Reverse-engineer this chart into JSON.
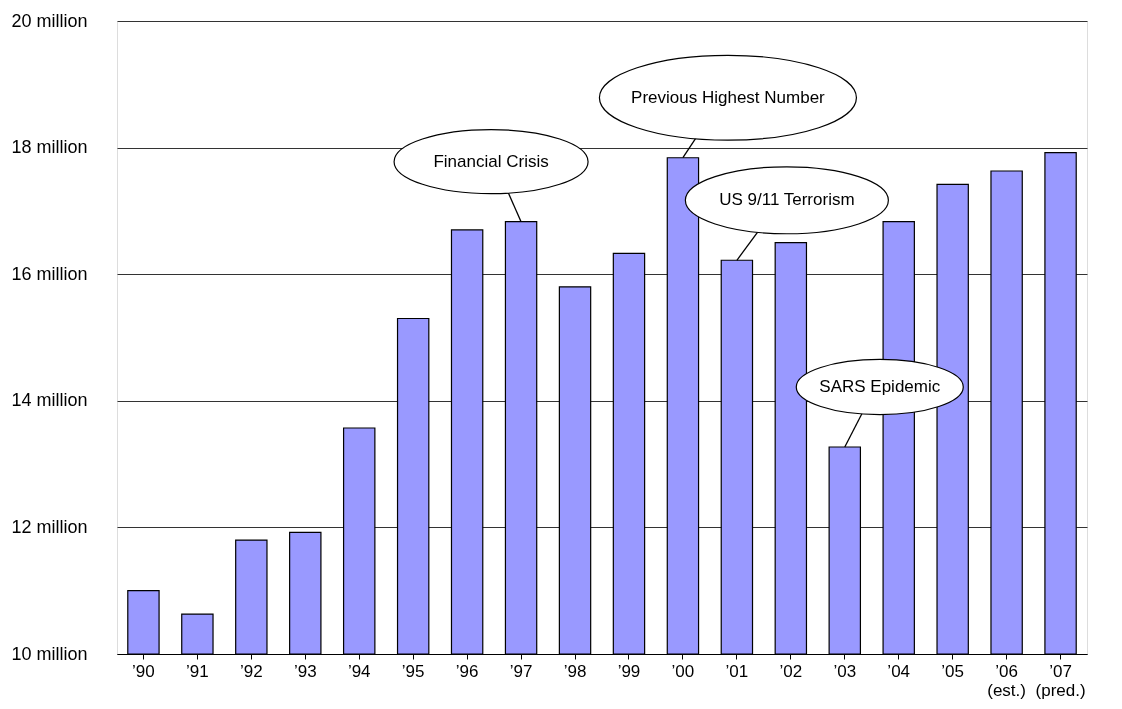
{
  "chart_data": {
    "type": "bar",
    "categories": [
      "’90",
      "’91",
      "’92",
      "’93",
      "’94",
      "’95",
      "’96",
      "’97",
      "’98",
      "’99",
      "’00",
      "’01",
      "’02",
      "’03",
      "’04",
      "’05",
      "’06\n(est.)",
      "’07\n(pred.)"
    ],
    "values": [
      11.0,
      10.63,
      11.8,
      11.92,
      13.57,
      15.3,
      16.7,
      16.83,
      15.8,
      16.33,
      17.84,
      16.22,
      16.5,
      13.27,
      16.83,
      17.42,
      17.63,
      17.92
    ],
    "color": "#9999ff",
    "ylim": [
      10,
      20
    ],
    "yticks": [
      {
        "value": 10,
        "label": "10 million"
      },
      {
        "value": 12,
        "label": "12 million"
      },
      {
        "value": 14,
        "label": "14 million"
      },
      {
        "value": 16,
        "label": "16 million"
      },
      {
        "value": 18,
        "label": "18 million"
      },
      {
        "value": 20,
        "label": "20 million"
      }
    ],
    "grid": "y",
    "annotations": [
      {
        "text": "Financial Crisis",
        "x": "’97",
        "y": 16.83
      },
      {
        "text": "Previous Highest Number",
        "x": "’00",
        "y": 17.84
      },
      {
        "text": "US 9/11 Terrorism",
        "x": "’01",
        "y": 16.22
      },
      {
        "text": "SARS Epidemic",
        "x": "’03",
        "y": 13.27
      }
    ]
  }
}
